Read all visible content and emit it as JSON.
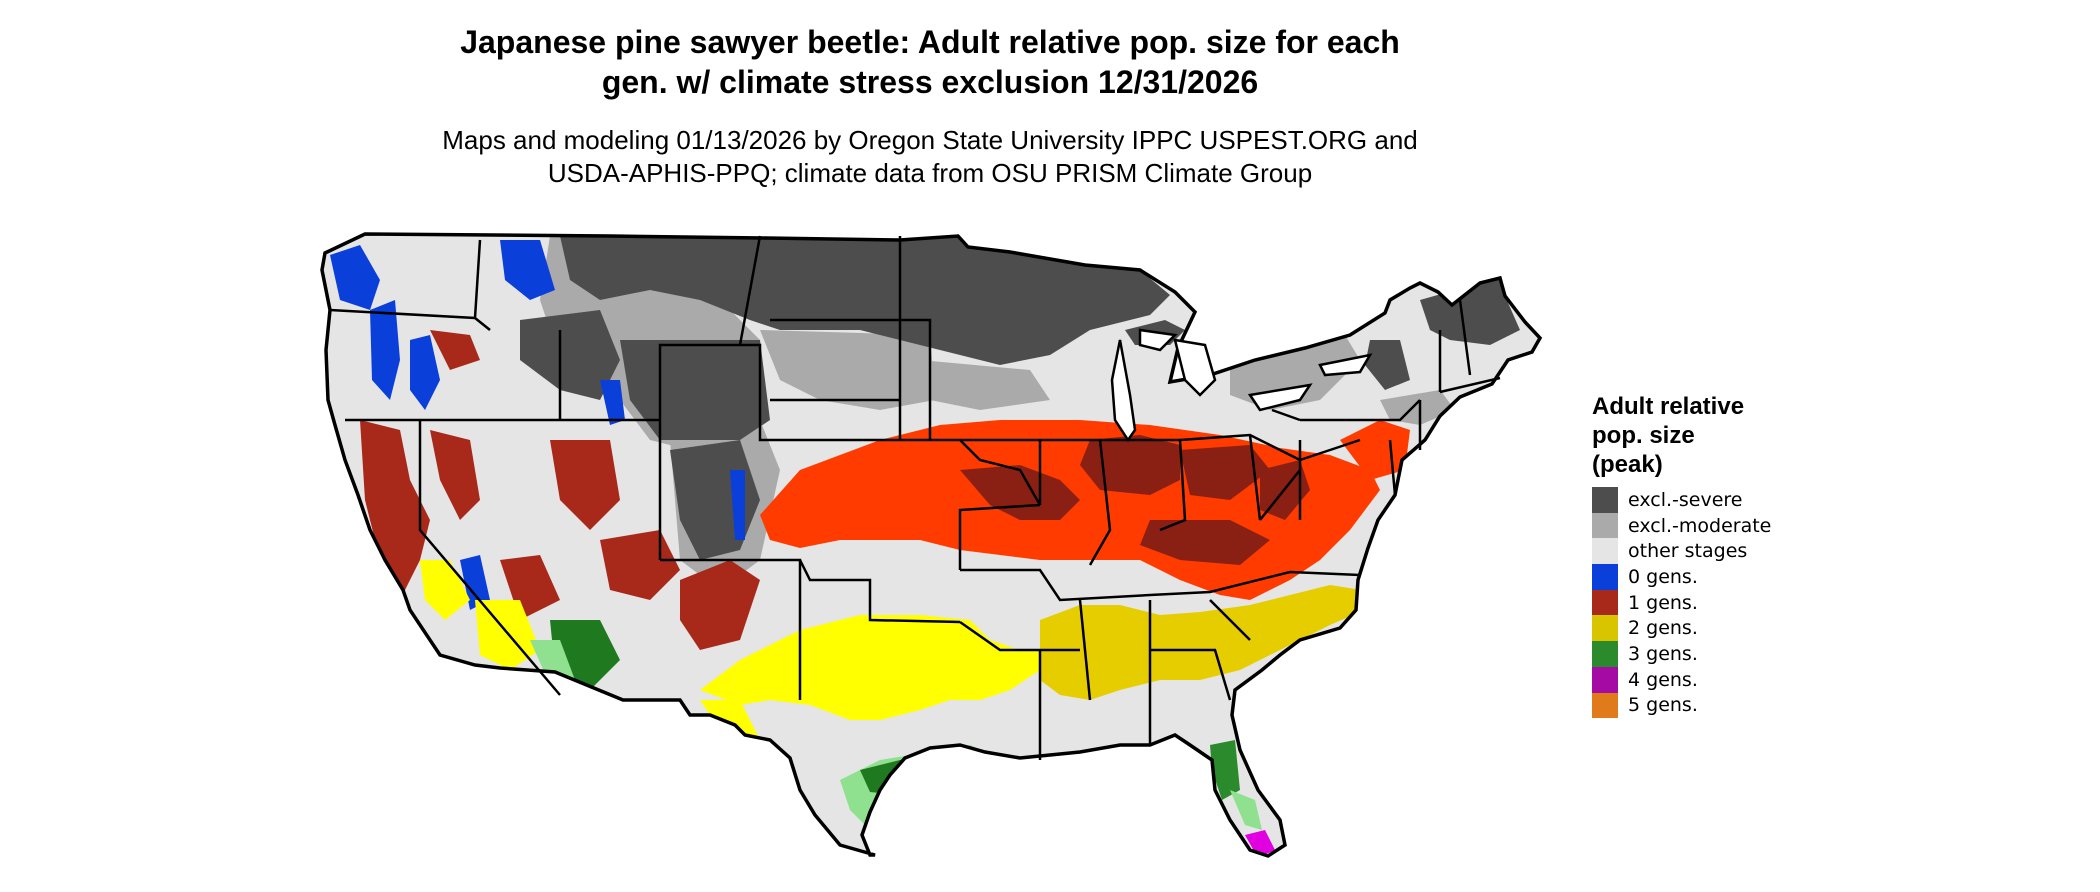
{
  "title": {
    "line1": "Japanese pine sawyer beetle: Adult relative pop. size for each",
    "line2": "gen. w/ climate stress exclusion 12/31/2026"
  },
  "subtitle": {
    "line1": "Maps and modeling 01/13/2026 by Oregon State University IPPC USPEST.ORG and",
    "line2": "USDA-APHIS-PPQ; climate data from OSU PRISM Climate Group"
  },
  "legend": {
    "title_lines": [
      "Adult relative",
      "pop. size",
      "(peak)"
    ],
    "items": [
      {
        "label": "excl.-severe",
        "color": "#4d4d4d"
      },
      {
        "label": "excl.-moderate",
        "color": "#aaaaaa"
      },
      {
        "label": "other stages",
        "color": "#e5e5e5"
      },
      {
        "label": "0 gens.",
        "color": "#0a3fd9"
      },
      {
        "label": "1 gens.",
        "color": "#a8281a"
      },
      {
        "label": "2 gens.",
        "color": "#d9c400"
      },
      {
        "label": "3 gens.",
        "color": "#2b8a2b"
      },
      {
        "label": "4 gens.",
        "color": "#a50aa5"
      },
      {
        "label": "5 gens.",
        "color": "#e07a1a"
      }
    ]
  },
  "map": {
    "colors": {
      "excl_severe": "#4d4d4d",
      "excl_moderate": "#aaaaaa",
      "other_stages": "#e5e5e5",
      "gen0": "#0a3fd9",
      "gen1_dark": "#8a1f14",
      "gen1_bright": "#ff3b00",
      "gen2": "#e6cd00",
      "gen2_light": "#ffff00",
      "gen3": "#1f7a1f",
      "gen3_light": "#8fe08f",
      "gen4": "#e000e0",
      "border": "#000000"
    }
  }
}
